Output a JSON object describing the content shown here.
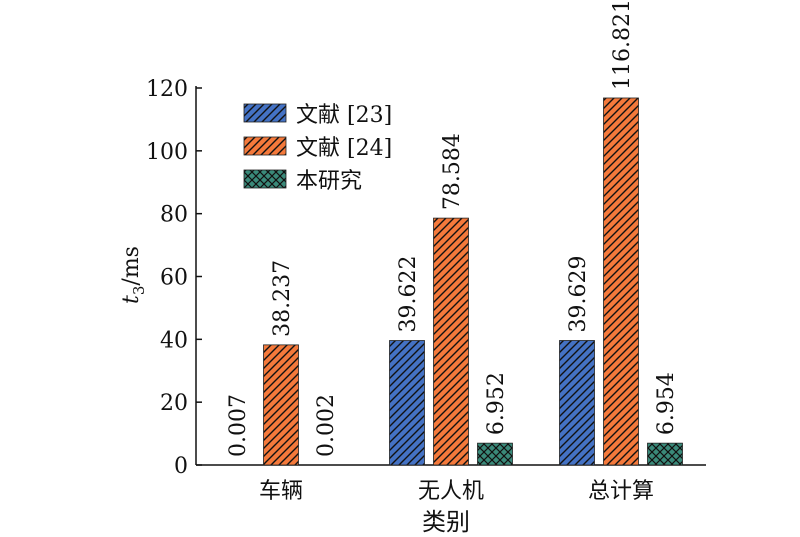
{
  "chart_data": {
    "type": "bar",
    "categories": [
      "车辆",
      "无人机",
      "总计算"
    ],
    "series": [
      {
        "name": "文献 [23]",
        "values": [
          0.007,
          39.622,
          39.629
        ],
        "labels": [
          "0.007",
          "39.622",
          "39.629"
        ],
        "color": "#4472c4",
        "pattern": "diagonal-hatch"
      },
      {
        "name": "文献 [24]",
        "values": [
          38.237,
          78.584,
          116.821
        ],
        "labels": [
          "38.237",
          "78.584",
          "116.821"
        ],
        "color": "#f4793b",
        "pattern": "diagonal-hatch"
      },
      {
        "name": "本研究",
        "values": [
          0.002,
          6.952,
          6.954
        ],
        "labels": [
          "0.002",
          "6.952",
          "6.954"
        ],
        "color": "#3a8a7a",
        "pattern": "cross-hatch"
      }
    ],
    "xlabel": "类别",
    "ylabel_main": "t",
    "ylabel_sub": "3",
    "ylabel_unit": "/ms",
    "ylim": [
      0,
      120
    ],
    "yticks": [
      0,
      20,
      40,
      60,
      80,
      100,
      120
    ],
    "grid": false,
    "legend_position": "top-left"
  }
}
